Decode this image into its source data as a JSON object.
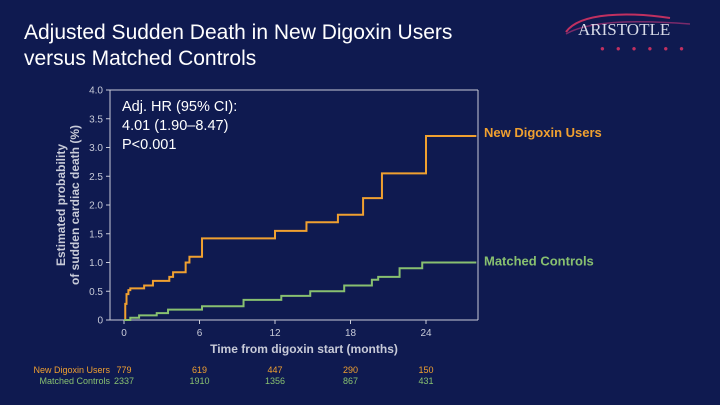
{
  "slide": {
    "title_line1": "Adjusted Sudden Death in New Digoxin Users",
    "title_line2": "versus Matched Controls",
    "logo_text": "ARISTOTLE",
    "stats": {
      "line1": "Adj. HR (95% CI):",
      "line2": "4.01 (1.90–8.47)",
      "line3": "P<0.001"
    }
  },
  "colors": {
    "background": "#0f1a50",
    "digoxin": "#f0a030",
    "controls": "#88c070",
    "axis": "#c8cbd8"
  },
  "chart_data": {
    "type": "line",
    "ylabel_line1": "Estimated probability",
    "ylabel_line2": "of sudden cardiac death (%)",
    "xlabel": "Time from digoxin start (months)",
    "xlim": [
      0,
      28
    ],
    "ylim": [
      0,
      4.0
    ],
    "xticks": [
      0,
      6,
      12,
      18,
      24
    ],
    "yticks": [
      0,
      0.5,
      1.0,
      1.5,
      2.0,
      2.5,
      3.0,
      3.5,
      4.0
    ],
    "ytick_labels": [
      "0",
      "0.5",
      "1.0",
      "1.5",
      "2.0",
      "2.5",
      "3.0",
      "3.5",
      "4.0"
    ],
    "series": [
      {
        "name": "New Digoxin Users",
        "color": "#f0a030",
        "x": [
          0,
          0.1,
          0.2,
          0.35,
          0.5,
          1.6,
          2.3,
          3.6,
          3.9,
          4.9,
          5.2,
          6.2,
          12,
          14.5,
          17,
          19,
          20.5,
          24,
          28
        ],
        "y": [
          0,
          0.28,
          0.45,
          0.52,
          0.55,
          0.6,
          0.68,
          0.75,
          0.83,
          1.0,
          1.1,
          1.42,
          1.55,
          1.7,
          1.83,
          2.12,
          2.55,
          3.2,
          3.2
        ]
      },
      {
        "name": "Matched Controls",
        "color": "#88c070",
        "x": [
          0,
          0.5,
          1.2,
          2.6,
          3.5,
          6.2,
          9.5,
          12.5,
          14.8,
          17.5,
          19.7,
          20.2,
          21.9,
          23.7,
          28
        ],
        "y": [
          0,
          0.04,
          0.08,
          0.12,
          0.18,
          0.24,
          0.35,
          0.42,
          0.5,
          0.6,
          0.7,
          0.75,
          0.9,
          1.0,
          1.0
        ]
      }
    ],
    "number_at_risk": {
      "rows": [
        {
          "label": "New Digoxin Users",
          "values": [
            "779",
            "619",
            "447",
            "290",
            "150"
          ],
          "color": "#f0a030"
        },
        {
          "label": "Matched Controls",
          "values": [
            "2337",
            "1910",
            "1356",
            "867",
            "431"
          ],
          "color": "#88c070"
        }
      ],
      "at_months": [
        0,
        6,
        12,
        18,
        24
      ]
    }
  }
}
